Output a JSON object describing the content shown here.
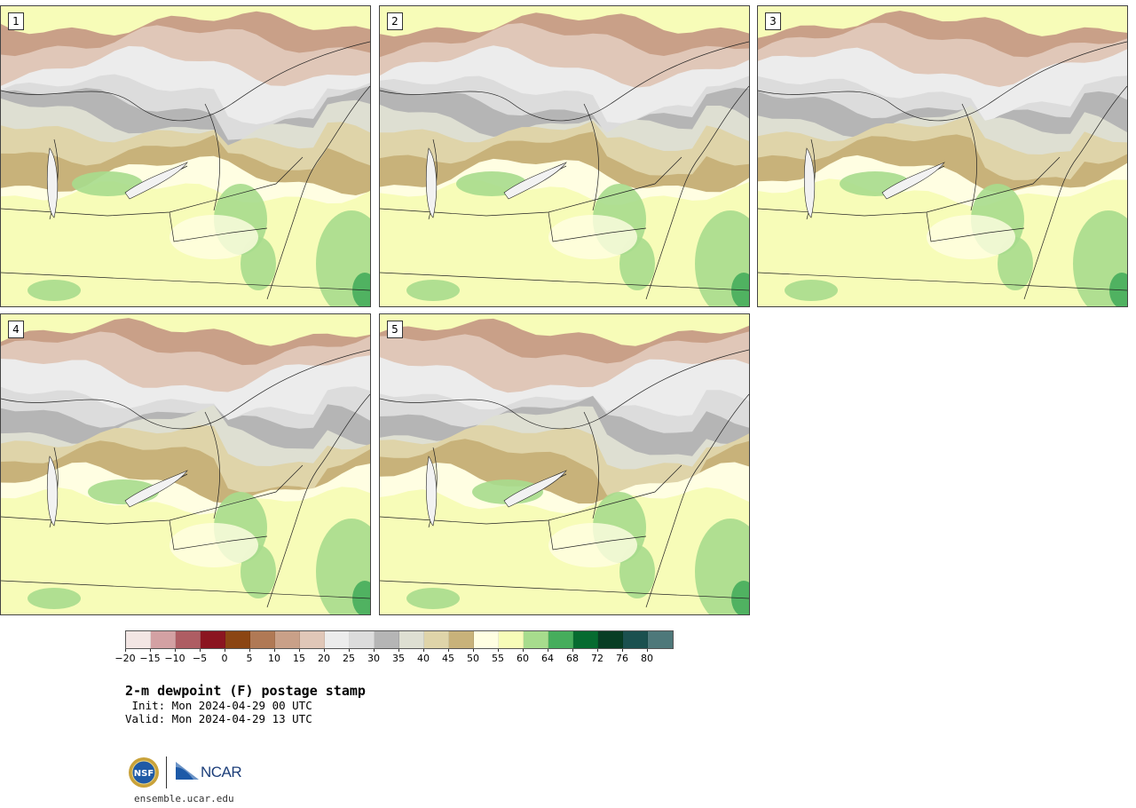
{
  "panels": [
    {
      "label": "1"
    },
    {
      "label": "2"
    },
    {
      "label": "3"
    },
    {
      "label": "4"
    },
    {
      "label": "5"
    }
  ],
  "colorbar": {
    "colors": [
      "#f3e6e4",
      "#d3a1a3",
      "#ae5d63",
      "#8b1520",
      "#8b4513",
      "#b07955",
      "#c9a088",
      "#e0c7b8",
      "#ececec",
      "#dcdcdc",
      "#b5b5b5",
      "#dedfd2",
      "#dfd4a9",
      "#c8b27a",
      "#fffee2",
      "#f7fcb8",
      "#a7dc8d",
      "#46ad5c",
      "#066b30",
      "#083d24",
      "#1b504f",
      "#4e787a"
    ],
    "ticks": [
      "−20",
      "−15",
      "−10",
      "−5",
      "0",
      "5",
      "10",
      "15",
      "20",
      "25",
      "30",
      "35",
      "40",
      "45",
      "50",
      "55",
      "60",
      "64",
      "68",
      "72",
      "76",
      "80"
    ]
  },
  "title": "2-m dewpoint (F) postage stamp",
  "init": " Init: Mon 2024-04-29 00 UTC",
  "valid": "Valid: Mon 2024-04-29 13 UTC",
  "logos": {
    "nsf": "NSF",
    "ncar": "NCAR"
  },
  "site": "ensemble.ucar.edu"
}
